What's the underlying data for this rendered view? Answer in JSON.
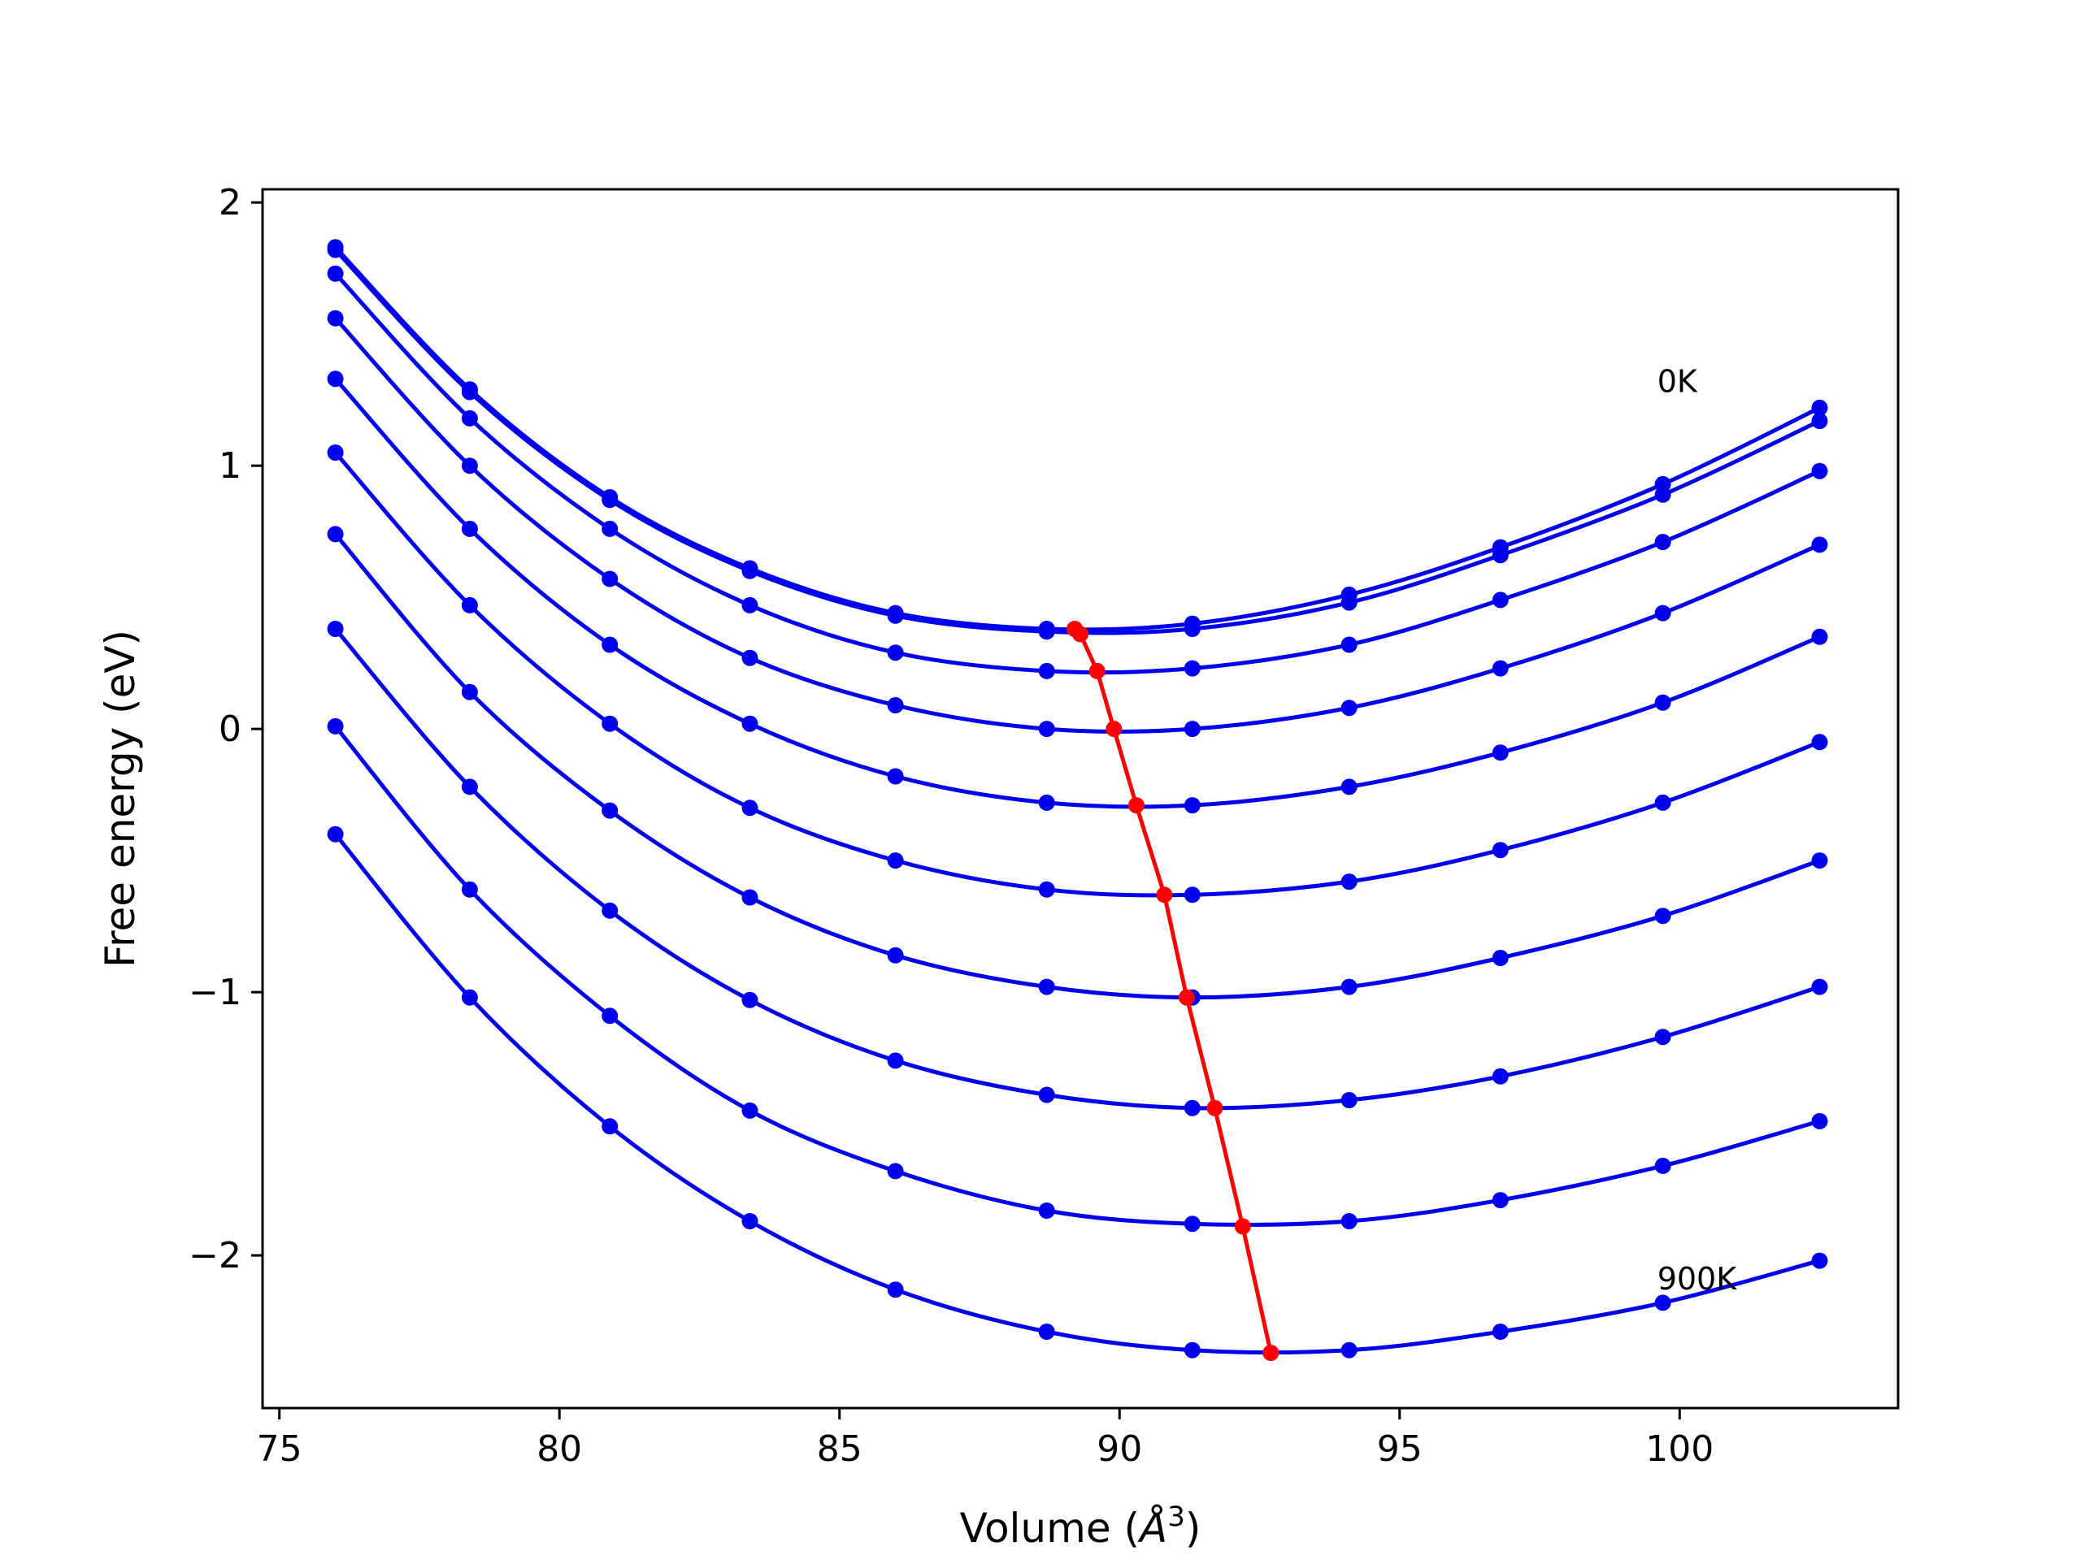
{
  "chart_data": {
    "type": "line",
    "xlabel": "Volume (",
    "xlabel_symbol": "Å",
    "xlabel_exp": "3",
    "xlabel_end": ")",
    "ylabel": "Free energy (eV)",
    "xlim": [
      74.7,
      103.9
    ],
    "ylim": [
      -2.58,
      2.05
    ],
    "xticks": [
      75,
      80,
      85,
      90,
      95,
      100
    ],
    "yticks": [
      2,
      1,
      0,
      -1,
      -2
    ],
    "ytick_labels": [
      "2",
      "1",
      "0",
      "−1",
      "−2"
    ],
    "grid": false,
    "colors": {
      "curves": "#0000ee",
      "minima": "#ff0000"
    },
    "annotations": [
      {
        "text": "0K",
        "x": 99.6,
        "y": 1.28
      },
      {
        "text": "900K",
        "x": 99.6,
        "y": -2.13
      }
    ],
    "x": [
      76.0,
      78.4,
      80.9,
      83.4,
      86.0,
      88.7,
      91.3,
      94.1,
      96.8,
      99.7,
      102.5
    ],
    "series": [
      {
        "values": [
          1.83,
          1.29,
          0.88,
          0.61,
          0.44,
          0.38,
          0.4,
          0.51,
          0.69,
          0.93,
          1.22
        ]
      },
      {
        "values": [
          1.82,
          1.28,
          0.87,
          0.6,
          0.43,
          0.37,
          0.38,
          0.48,
          0.66,
          0.89,
          1.17
        ]
      },
      {
        "values": [
          1.73,
          1.18,
          0.76,
          0.47,
          0.29,
          0.22,
          0.23,
          0.32,
          0.49,
          0.71,
          0.98
        ]
      },
      {
        "values": [
          1.56,
          1.0,
          0.57,
          0.27,
          0.09,
          0.0,
          0.0,
          0.08,
          0.23,
          0.44,
          0.7
        ]
      },
      {
        "values": [
          1.33,
          0.76,
          0.32,
          0.02,
          -0.18,
          -0.28,
          -0.29,
          -0.22,
          -0.09,
          0.1,
          0.35
        ]
      },
      {
        "values": [
          1.05,
          0.47,
          0.02,
          -0.3,
          -0.5,
          -0.61,
          -0.63,
          -0.58,
          -0.46,
          -0.28,
          -0.05
        ]
      },
      {
        "values": [
          0.74,
          0.14,
          -0.31,
          -0.64,
          -0.86,
          -0.98,
          -1.02,
          -0.98,
          -0.87,
          -0.71,
          -0.5
        ]
      },
      {
        "values": [
          0.38,
          -0.22,
          -0.69,
          -1.03,
          -1.26,
          -1.39,
          -1.44,
          -1.41,
          -1.32,
          -1.17,
          -0.98
        ]
      },
      {
        "values": [
          0.01,
          -0.61,
          -1.09,
          -1.45,
          -1.68,
          -1.83,
          -1.88,
          -1.87,
          -1.79,
          -1.66,
          -1.49
        ]
      },
      {
        "values": [
          -0.4,
          -1.02,
          -1.51,
          -1.87,
          -2.13,
          -2.29,
          -2.36,
          -2.36,
          -2.29,
          -2.18,
          -2.02
        ]
      }
    ],
    "minima": {
      "x": [
        89.2,
        89.3,
        89.6,
        89.9,
        90.3,
        90.8,
        91.2,
        91.7,
        92.2,
        92.7
      ],
      "y": [
        0.38,
        0.36,
        0.22,
        0.0,
        -0.29,
        -0.63,
        -1.02,
        -1.44,
        -1.89,
        -2.37
      ]
    }
  }
}
